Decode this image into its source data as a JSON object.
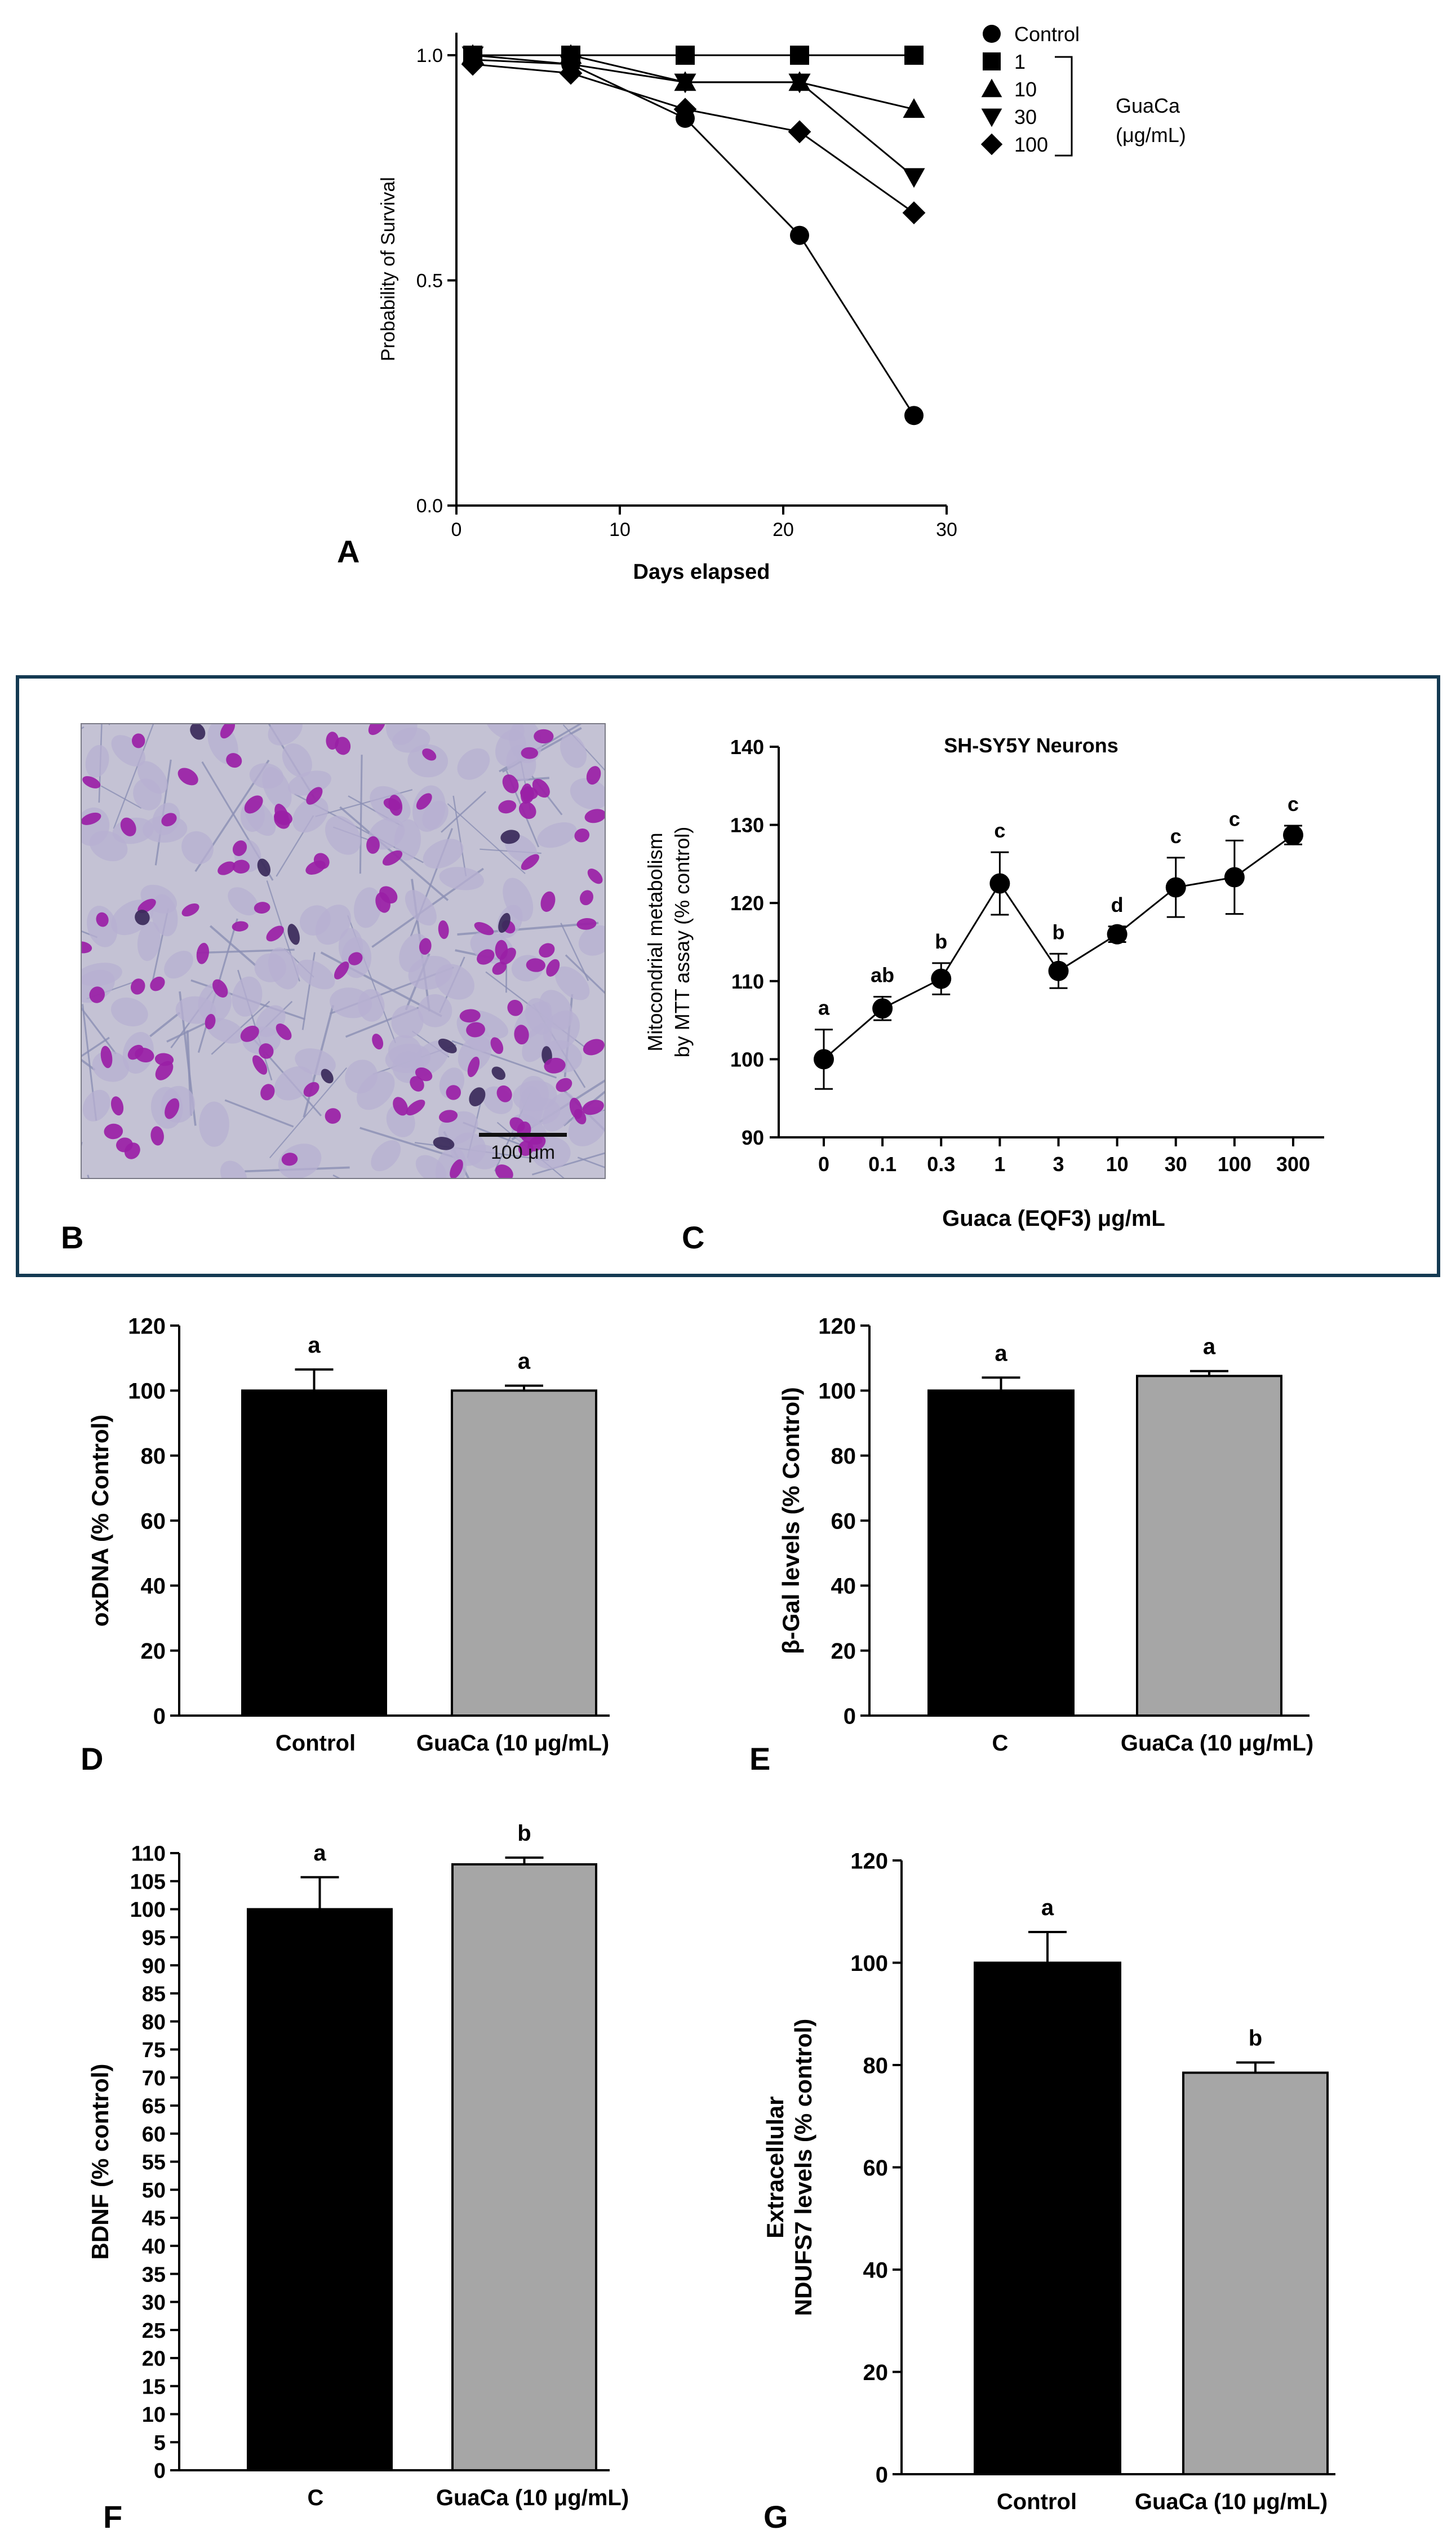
{
  "panels": {
    "A": "A",
    "B": "B",
    "C": "C",
    "D": "D",
    "E": "E",
    "F": "F",
    "G": "G"
  },
  "micrograph": {
    "scale_bar_label": "100 μm"
  },
  "colors": {
    "dark_bar": "#000000",
    "grey_bar": "#a6a6a6",
    "frame": "#143a52",
    "nucleus": "#9a1fa6",
    "background_cells": "#c4c2d4"
  },
  "chart_data": [
    {
      "panel": "A",
      "type": "line",
      "xlabel": "Days elapsed",
      "ylabel": "Probability of Survival",
      "xlim": [
        0,
        30
      ],
      "ylim": [
        0,
        1.05
      ],
      "xticks": [
        0,
        10,
        20,
        30
      ],
      "yticks": [
        0.0,
        0.5,
        1.0
      ],
      "ytick_labels": [
        "0.0",
        "0.5",
        "1.0"
      ],
      "legend": {
        "placement": "right",
        "group_label_lines": [
          "GuaCa",
          "(μg/mL)"
        ]
      },
      "series": [
        {
          "name": "Control",
          "marker": "circle",
          "x": [
            1,
            7,
            14,
            21,
            28
          ],
          "y": [
            0.99,
            0.98,
            0.86,
            0.6,
            0.2
          ]
        },
        {
          "name": "1",
          "marker": "square",
          "x": [
            1,
            7,
            14,
            21,
            28
          ],
          "y": [
            1.0,
            1.0,
            1.0,
            1.0,
            1.0
          ]
        },
        {
          "name": "10",
          "marker": "triangle-up",
          "x": [
            1,
            7,
            14,
            21,
            28
          ],
          "y": [
            1.0,
            1.0,
            0.94,
            0.94,
            0.88
          ]
        },
        {
          "name": "30",
          "marker": "triangle-down",
          "x": [
            1,
            7,
            14,
            21,
            28
          ],
          "y": [
            1.0,
            0.98,
            0.94,
            0.94,
            0.73
          ]
        },
        {
          "name": "100",
          "marker": "diamond",
          "x": [
            1,
            7,
            14,
            21,
            28
          ],
          "y": [
            0.98,
            0.96,
            0.88,
            0.83,
            0.65
          ]
        }
      ]
    },
    {
      "panel": "C",
      "type": "line",
      "title": "SH-SY5Y Neurons",
      "xlabel": "Guaca (EQF3) μg/mL",
      "ylabel_lines": [
        "Mitocondrial metabolism",
        "by MTT assay (% control)"
      ],
      "categories": [
        "0",
        "0.1",
        "0.3",
        "1",
        "3",
        "10",
        "30",
        "100",
        "300"
      ],
      "values": [
        100,
        106.5,
        110.3,
        122.5,
        111.3,
        116,
        122,
        123.3,
        128.7
      ],
      "errors": [
        3.8,
        1.5,
        2.0,
        4.0,
        2.2,
        1.0,
        3.8,
        4.7,
        1.2
      ],
      "letters": [
        "a",
        "ab",
        "b",
        "c",
        "b",
        "d",
        "c",
        "c",
        "c"
      ],
      "ylim": [
        90,
        140
      ],
      "yticks": [
        90,
        100,
        110,
        120,
        130,
        140
      ]
    },
    {
      "panel": "D",
      "type": "bar",
      "ylabel": "oxDNA (% Control)",
      "categories": [
        "Control",
        "GuaCa (10 μg/mL)"
      ],
      "values": [
        100,
        100
      ],
      "errors": [
        6.5,
        1.5
      ],
      "letters": [
        "a",
        "a"
      ],
      "ylim": [
        0,
        120
      ],
      "yticks": [
        0,
        20,
        40,
        60,
        80,
        100,
        120
      ]
    },
    {
      "panel": "E",
      "type": "bar",
      "ylabel": "β-Gal levels (%  Control)",
      "categories": [
        "C",
        "GuaCa (10 μg/mL)"
      ],
      "values": [
        100,
        104.5
      ],
      "errors": [
        4.0,
        1.5
      ],
      "letters": [
        "a",
        "a"
      ],
      "ylim": [
        0,
        120
      ],
      "yticks": [
        0,
        20,
        40,
        60,
        80,
        100,
        120
      ]
    },
    {
      "panel": "F",
      "type": "bar",
      "ylabel": "BDNF (% control)",
      "categories": [
        "C",
        "GuaCa (10 μg/mL)"
      ],
      "values": [
        100,
        108
      ],
      "errors": [
        5.7,
        1.2
      ],
      "letters": [
        "a",
        "b"
      ],
      "ylim": [
        0,
        110
      ],
      "yticks": [
        0,
        5,
        10,
        15,
        20,
        25,
        30,
        35,
        40,
        45,
        50,
        55,
        60,
        65,
        70,
        75,
        80,
        85,
        90,
        95,
        100,
        105,
        110
      ]
    },
    {
      "panel": "G",
      "type": "bar",
      "ylabel_lines": [
        "Extracellular",
        "NDUFS7 levels (% control)"
      ],
      "categories": [
        "Control",
        "GuaCa (10 μg/mL)"
      ],
      "values": [
        100,
        78.5
      ],
      "errors": [
        6.0,
        2.0
      ],
      "letters": [
        "a",
        "b"
      ],
      "ylim": [
        0,
        120
      ],
      "yticks": [
        0,
        20,
        40,
        60,
        80,
        100,
        120
      ]
    }
  ]
}
